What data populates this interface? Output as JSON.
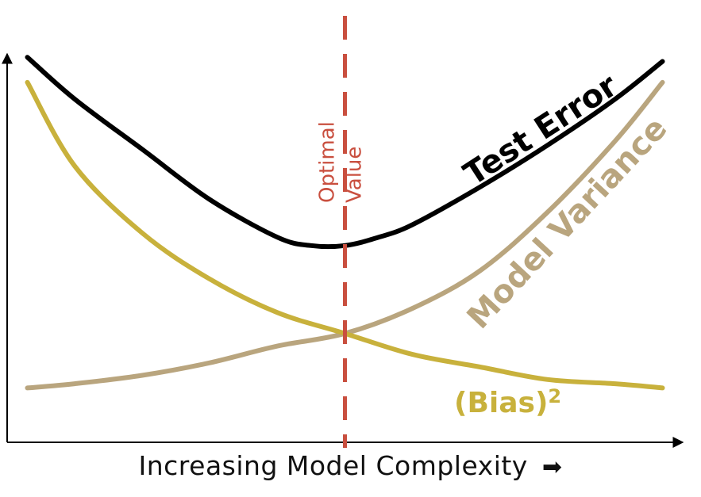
{
  "chart_data": {
    "type": "line",
    "title": "",
    "xlabel": "Increasing Model Complexity",
    "xlabel_arrow": "➡",
    "ylabel": "",
    "xlim": [
      0,
      1
    ],
    "ylim": [
      0,
      1
    ],
    "grid": false,
    "legend": "none",
    "series": [
      {
        "name": "Test Error",
        "color": "#000000",
        "x": [
          0.03,
          0.1,
          0.2,
          0.3,
          0.4,
          0.45,
          0.5,
          0.55,
          0.6,
          0.7,
          0.8,
          0.9,
          0.97
        ],
        "y": [
          0.92,
          0.82,
          0.7,
          0.58,
          0.49,
          0.47,
          0.47,
          0.49,
          0.52,
          0.61,
          0.71,
          0.82,
          0.91
        ]
      },
      {
        "name": "Model Variance",
        "color": "#B9A57E",
        "x": [
          0.03,
          0.1,
          0.2,
          0.3,
          0.4,
          0.5,
          0.6,
          0.7,
          0.8,
          0.9,
          0.97
        ],
        "y": [
          0.13,
          0.14,
          0.16,
          0.19,
          0.23,
          0.26,
          0.32,
          0.41,
          0.55,
          0.72,
          0.86
        ]
      },
      {
        "name": "(Bias)",
        "name_superscript": "2",
        "color": "#C8B13C",
        "x": [
          0.03,
          0.1,
          0.2,
          0.3,
          0.4,
          0.5,
          0.6,
          0.7,
          0.8,
          0.9,
          0.97
        ],
        "y": [
          0.86,
          0.66,
          0.5,
          0.39,
          0.31,
          0.26,
          0.21,
          0.18,
          0.15,
          0.14,
          0.13
        ]
      }
    ],
    "annotations": [
      {
        "type": "vline",
        "x": 0.5,
        "color": "#C94F3F",
        "style": "dashed",
        "text_line1": "Optimal",
        "text_line2": "Value"
      }
    ]
  }
}
